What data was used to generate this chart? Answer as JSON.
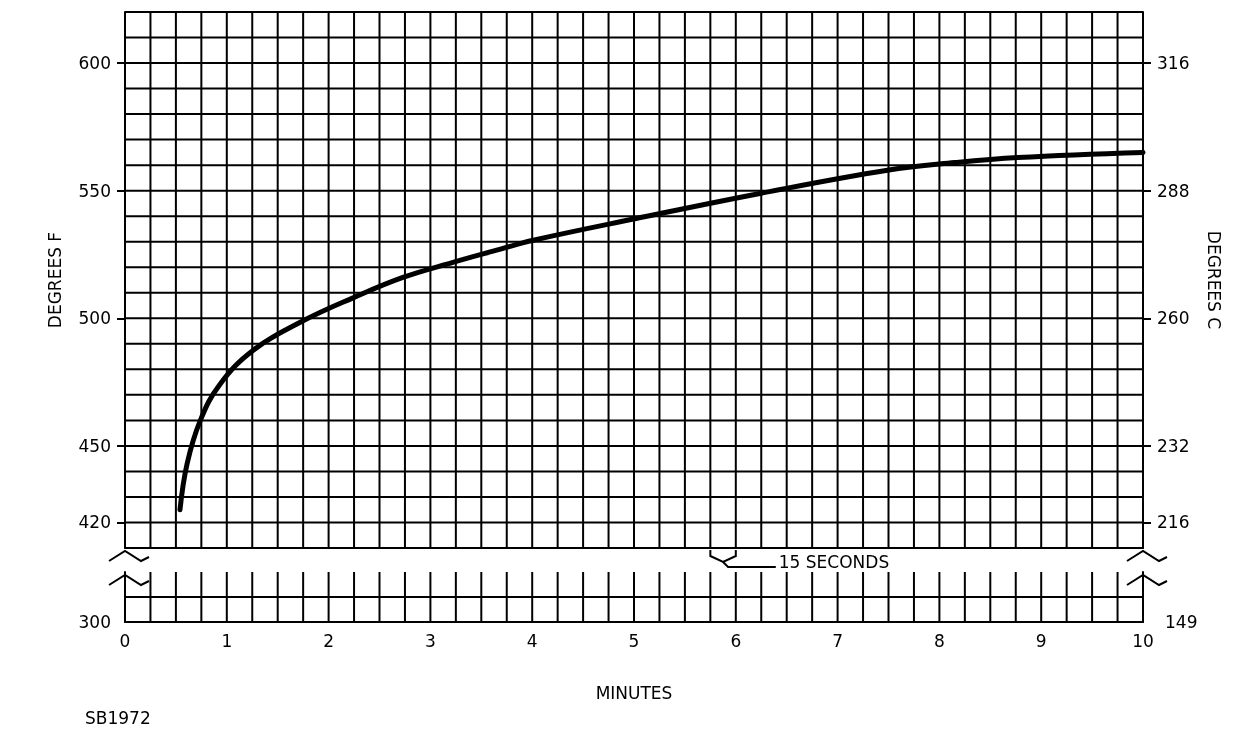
{
  "chart_data": {
    "type": "line",
    "ylabel": "DEGREES F",
    "y2label": "DEGREES C",
    "xlabel": "MINUTES",
    "annotations": [
      "15 SECONDS",
      "300",
      "149",
      "SB1972"
    ],
    "series": [
      {
        "color": "#000000",
        "x": [
          0.54,
          0.61,
          0.74,
          0.93,
          1.26,
          1.75,
          2.24,
          2.73,
          3.23,
          3.68,
          4.0,
          5.01,
          6.25,
          7.49,
          8.15,
          8.77,
          10
        ],
        "values": [
          425,
          443,
          460,
          474,
          487.5,
          499,
          508,
          516,
          522,
          527,
          530.5,
          539,
          549,
          558,
          561,
          563,
          565
        ]
      }
    ],
    "xlim": [
      0,
      10
    ],
    "xticks": [
      0,
      {
        "value": 0.25,
        "label": null
      },
      {
        "value": 0.5,
        "label": null
      },
      {
        "value": 0.75,
        "label": null
      },
      1,
      {
        "value": 1.25,
        "label": null
      },
      {
        "value": 1.5,
        "label": null
      },
      {
        "value": 1.75,
        "label": null
      },
      2,
      {
        "value": 2.25,
        "label": null
      },
      {
        "value": 2.5,
        "label": null
      },
      {
        "value": 2.75,
        "label": null
      },
      3,
      {
        "value": 3.25,
        "label": null
      },
      {
        "value": 3.5,
        "label": null
      },
      {
        "value": 3.75,
        "label": null
      },
      4,
      {
        "value": 4.25,
        "label": null
      },
      {
        "value": 4.5,
        "label": null
      },
      {
        "value": 4.75,
        "label": null
      },
      5,
      {
        "value": 5.25,
        "label": null
      },
      {
        "value": 5.5,
        "label": null
      },
      {
        "value": 5.75,
        "label": null
      },
      6,
      {
        "value": 6.25,
        "label": null
      },
      {
        "value": 6.5,
        "label": null
      },
      {
        "value": 6.75,
        "label": null
      },
      7,
      {
        "value": 7.25,
        "label": null
      },
      {
        "value": 7.5,
        "label": null
      },
      {
        "value": 7.75,
        "label": null
      },
      8,
      {
        "value": 8.25,
        "label": null
      },
      {
        "value": 8.5,
        "label": null
      },
      {
        "value": 8.75,
        "label": null
      },
      9,
      {
        "value": 9.25,
        "label": null
      },
      {
        "value": 9.5,
        "label": null
      },
      {
        "value": 9.75,
        "label": null
      },
      10
    ],
    "ylim": [
      410,
      620
    ],
    "yticks": [
      420,
      {
        "value": 430,
        "label": null
      },
      {
        "value": 440,
        "label": null
      },
      450,
      {
        "value": 460,
        "label": null
      },
      {
        "value": 470,
        "label": null
      },
      {
        "value": 480,
        "label": null
      },
      {
        "value": 490,
        "label": null
      },
      500,
      {
        "value": 510,
        "label": null
      },
      {
        "value": 520,
        "label": null
      },
      {
        "value": 530,
        "label": null
      },
      {
        "value": 540,
        "label": null
      },
      550,
      {
        "value": 560,
        "label": null
      },
      {
        "value": 570,
        "label": null
      },
      {
        "value": 580,
        "label": null
      },
      {
        "value": 590,
        "label": null
      },
      600,
      {
        "value": 610,
        "label": null
      }
    ],
    "y2lim": [
      210,
      326.7
    ],
    "y2ticks": [
      {
        "value": 215.6,
        "label": "216"
      },
      {
        "value": 232.2,
        "label": "232"
      },
      {
        "value": 260,
        "label": "260"
      },
      {
        "value": 287.8,
        "label": "288"
      },
      {
        "value": 315.6,
        "label": "316"
      }
    ],
    "grid": true,
    "marker": "none",
    "line_style": "solid"
  }
}
